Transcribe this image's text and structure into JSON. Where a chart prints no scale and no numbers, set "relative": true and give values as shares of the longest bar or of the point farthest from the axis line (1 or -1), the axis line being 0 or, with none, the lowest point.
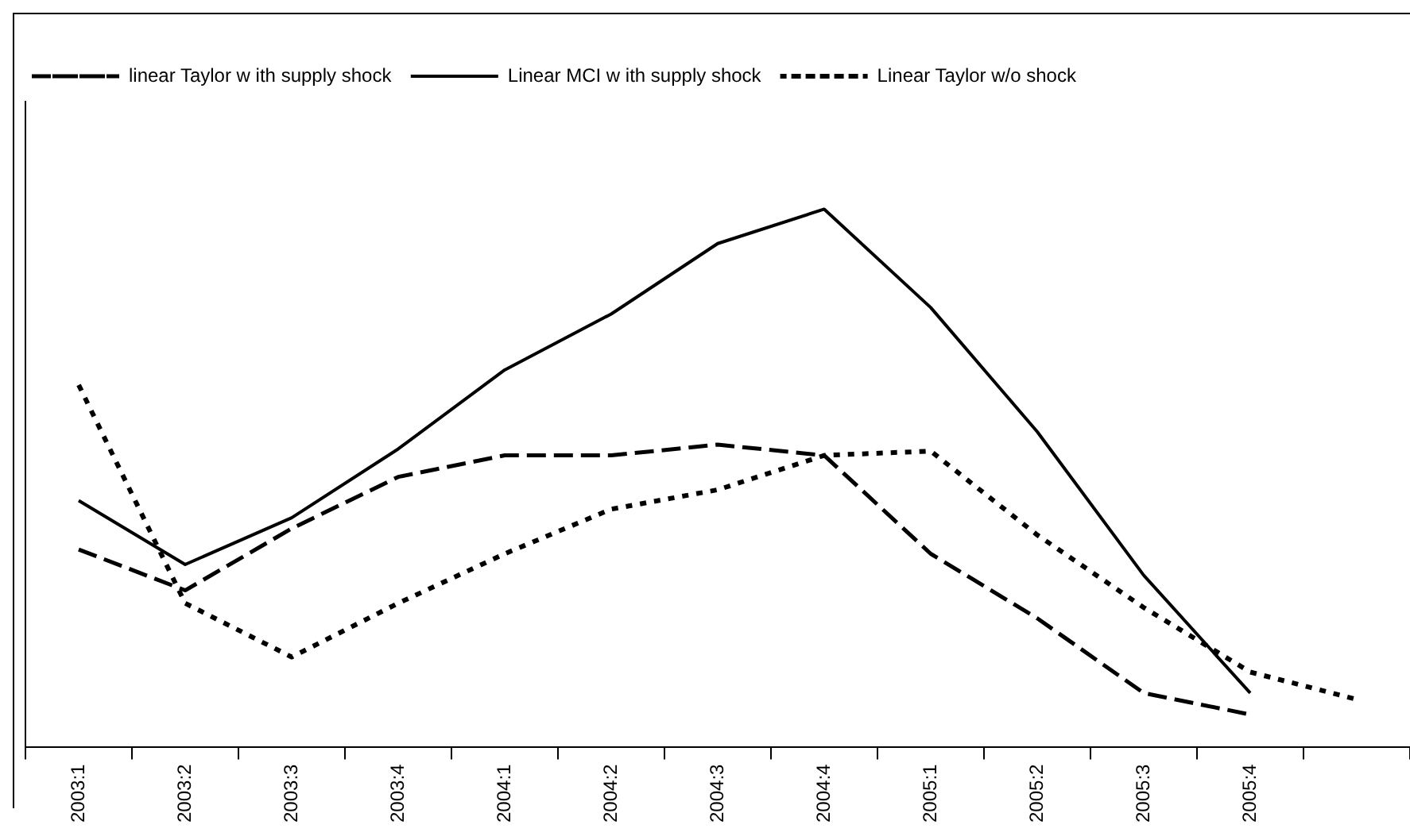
{
  "chart_data": {
    "type": "line",
    "relative": true,
    "legend": "top left",
    "grid": false,
    "categories": [
      "2003:1",
      "2003:2",
      "2003:3",
      "2003:4",
      "2004:1",
      "2004:2",
      "2004:3",
      "2004:4",
      "2005:1",
      "2005:2",
      "2005:3",
      "2005:4",
      null
    ],
    "series": [
      {
        "name": "linear Taylor w ith supply shock",
        "color": "#000000",
        "line_style": "dashed",
        "values": [
          0.367,
          0.291,
          0.406,
          0.502,
          0.542,
          0.542,
          0.562,
          0.542,
          0.359,
          0.239,
          0.1,
          0.06,
          null
        ]
      },
      {
        "name": "Linear MCI w ith supply shock",
        "color": "#000000",
        "line_style": "solid",
        "values": [
          0.458,
          0.339,
          0.426,
          0.554,
          0.701,
          0.805,
          0.936,
          1,
          0.817,
          0.586,
          0.319,
          0.1,
          null
        ]
      },
      {
        "name": "Linear Taylor w/o shock",
        "color": "#000000",
        "line_style": "dotted",
        "values": [
          0.673,
          0.267,
          0.167,
          0.267,
          0.359,
          0.442,
          0.478,
          0.542,
          0.55,
          0.394,
          0.259,
          0.139,
          0.088
        ]
      }
    ]
  }
}
